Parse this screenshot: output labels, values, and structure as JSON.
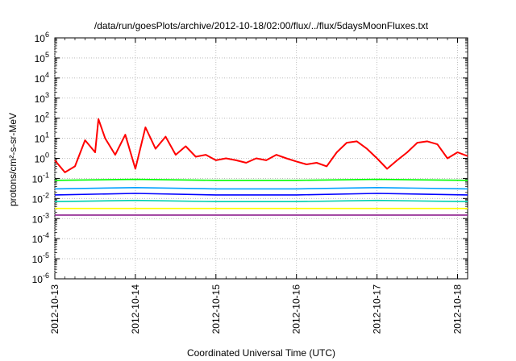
{
  "chart_data": {
    "type": "line",
    "title": "/data/run/goesPlots/archive/2012-10-18/02:00/flux/../flux/5daysMoonFluxes.txt",
    "xlabel": "Coordinated Universal Time (UTC)",
    "ylabel": "protons/cm²-s-sr-MeV",
    "y_scale": "log",
    "ylim": [
      1e-06,
      1000000.0
    ],
    "xlim": [
      "2012-10-13",
      "2012-10-18 03:00"
    ],
    "grid": true,
    "x_ticks": [
      "2012-10-13",
      "2012-10-14",
      "2012-10-15",
      "2012-10-16",
      "2012-10-17",
      "2012-10-18"
    ],
    "y_ticks": [
      {
        "base": "10",
        "exp": "-6"
      },
      {
        "base": "10",
        "exp": "-5"
      },
      {
        "base": "10",
        "exp": "-4"
      },
      {
        "base": "10",
        "exp": "-3"
      },
      {
        "base": "10",
        "exp": "-2"
      },
      {
        "base": "10",
        "exp": "-1"
      },
      {
        "base": "10",
        "exp": "0"
      },
      {
        "base": "10",
        "exp": "1"
      },
      {
        "base": "10",
        "exp": "2"
      },
      {
        "base": "10",
        "exp": "3"
      },
      {
        "base": "10",
        "exp": "4"
      },
      {
        "base": "10",
        "exp": "5"
      },
      {
        "base": "10",
        "exp": "6"
      }
    ],
    "series": [
      {
        "color": "#ff0000",
        "x": [
          "2012-10-13 00:00",
          "2012-10-13 03:00",
          "2012-10-13 06:00",
          "2012-10-13 09:00",
          "2012-10-13 12:00",
          "2012-10-13 13:00",
          "2012-10-13 15:00",
          "2012-10-13 18:00",
          "2012-10-13 21:00",
          "2012-10-14 00:00",
          "2012-10-14 03:00",
          "2012-10-14 06:00",
          "2012-10-14 09:00",
          "2012-10-14 12:00",
          "2012-10-14 15:00",
          "2012-10-14 18:00",
          "2012-10-14 21:00",
          "2012-10-15 00:00",
          "2012-10-15 03:00",
          "2012-10-15 06:00",
          "2012-10-15 09:00",
          "2012-10-15 12:00",
          "2012-10-15 15:00",
          "2012-10-15 18:00",
          "2012-10-15 21:00",
          "2012-10-16 00:00",
          "2012-10-16 03:00",
          "2012-10-16 06:00",
          "2012-10-16 09:00",
          "2012-10-16 12:00",
          "2012-10-16 15:00",
          "2012-10-16 18:00",
          "2012-10-16 21:00",
          "2012-10-17 00:00",
          "2012-10-17 03:00",
          "2012-10-17 06:00",
          "2012-10-17 09:00",
          "2012-10-17 12:00",
          "2012-10-17 15:00",
          "2012-10-17 18:00",
          "2012-10-17 21:00",
          "2012-10-18 00:00",
          "2012-10-18 03:00"
        ],
        "y": [
          0.8,
          0.2,
          0.4,
          8,
          2,
          90,
          10,
          1.5,
          15,
          0.3,
          35,
          3,
          12,
          1.5,
          4,
          1.2,
          1.5,
          0.8,
          1,
          0.8,
          0.6,
          1,
          0.8,
          1.5,
          1,
          0.7,
          0.5,
          0.6,
          0.4,
          2,
          6,
          7,
          3,
          1,
          0.3,
          0.8,
          2,
          6,
          7,
          5,
          1,
          2,
          1.3
        ]
      },
      {
        "color": "#00ff00",
        "x": [
          "2012-10-13 00:00",
          "2012-10-14 00:00",
          "2012-10-15 00:00",
          "2012-10-16 00:00",
          "2012-10-17 00:00",
          "2012-10-18 03:00"
        ],
        "y": [
          0.08,
          0.09,
          0.08,
          0.08,
          0.09,
          0.08
        ]
      },
      {
        "color": "#00a0ff",
        "x": [
          "2012-10-13 00:00",
          "2012-10-14 00:00",
          "2012-10-15 00:00",
          "2012-10-16 00:00",
          "2012-10-17 00:00",
          "2012-10-18 03:00"
        ],
        "y": [
          0.03,
          0.035,
          0.03,
          0.03,
          0.035,
          0.03
        ]
      },
      {
        "color": "#0000ff",
        "x": [
          "2012-10-13 00:00",
          "2012-10-14 00:00",
          "2012-10-15 00:00",
          "2012-10-16 00:00",
          "2012-10-17 00:00",
          "2012-10-18 03:00"
        ],
        "y": [
          0.015,
          0.018,
          0.015,
          0.015,
          0.018,
          0.015
        ]
      },
      {
        "color": "#00d0b0",
        "x": [
          "2012-10-13 00:00",
          "2012-10-14 00:00",
          "2012-10-15 00:00",
          "2012-10-16 00:00",
          "2012-10-17 00:00",
          "2012-10-18 03:00"
        ],
        "y": [
          0.007,
          0.008,
          0.007,
          0.007,
          0.008,
          0.007
        ]
      },
      {
        "color": "#ffff00",
        "x": [
          "2012-10-13 00:00",
          "2012-10-14 00:00",
          "2012-10-15 00:00",
          "2012-10-16 00:00",
          "2012-10-17 00:00",
          "2012-10-18 03:00"
        ],
        "y": [
          0.0032,
          0.0032,
          0.0032,
          0.0032,
          0.0032,
          0.0032
        ]
      },
      {
        "color": "#8b1a8b",
        "x": [
          "2012-10-13 00:00",
          "2012-10-14 00:00",
          "2012-10-15 00:00",
          "2012-10-16 00:00",
          "2012-10-17 00:00",
          "2012-10-18 03:00"
        ],
        "y": [
          0.0015,
          0.0015,
          0.0015,
          0.0015,
          0.0015,
          0.0015
        ]
      }
    ]
  }
}
